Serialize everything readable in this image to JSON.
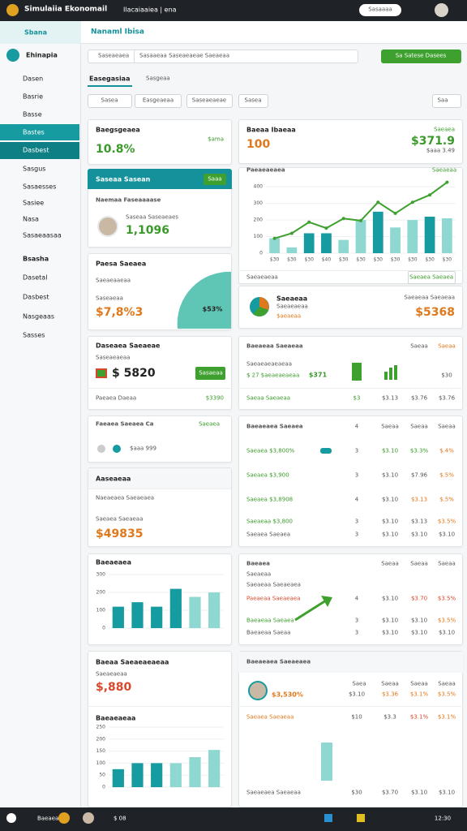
{
  "topbar": {
    "title": "Simulaiia Ekonomail",
    "subtitle": "Ilacaiaaiea | ena",
    "button": "Sasaaaa"
  },
  "sidebar": {
    "header": "Sbana",
    "profile": "Ehinapia",
    "items": [
      "Dasen",
      "Basrie",
      "Basse",
      "Bastes",
      "Dasbest",
      "Sasgus",
      "Sasaesses",
      "Sasiee",
      "Nasa",
      "Sasaeaasaa"
    ],
    "section": "Bsasha",
    "section_items": [
      "Dasetal",
      "Dasbest",
      "Nasgeaas",
      "Sasses"
    ]
  },
  "header": {
    "title": "Nanaml Ibisa"
  },
  "search": {
    "placeholder": "Saseaeaea",
    "field": "Sasaaeaa Saseaeaeae Saeaeaa",
    "button": "Sa Satese Dasees"
  },
  "tabs": [
    "Easegasiaa",
    "Sasgeaa"
  ],
  "filters": [
    "Sasea",
    "Easgeaeaa",
    "Saseaeaeae",
    "Sasea"
  ],
  "filter_select": "Saa",
  "balance": {
    "title": "Baegsgeaea",
    "value": "10.8%",
    "note": "$ama"
  },
  "profile_card": {
    "header": "Saseaa Sasean",
    "button": "Saaa",
    "subtitle": "Naemaa Faseaaaase",
    "name": "Saseaa Saseaeaes",
    "value": "1,1096"
  },
  "gauge_card": {
    "title": "Paesa Saeaea",
    "line1": "Saeaeaaeaa",
    "line2": "Saseaeaa",
    "value": "$7,8%3",
    "gauge": "$53%"
  },
  "deposit": {
    "title": "Daseaea Saeaeae",
    "subtitle": "Saseaeaeaa",
    "value": "$ 5820",
    "button": "Sasaeaa",
    "footer": "Paeaea Daeaa",
    "footer_value": "$3390"
  },
  "friends": {
    "title": "Faeaea Saeaea Ca",
    "link": "Saeaea",
    "meta": "$aaa 999"
  },
  "accounts": {
    "title": "Aaseaeaa",
    "subtitle": "Naeaeaea Saeaeaea",
    "label": "Saeaea Saeaeaa",
    "value": "$49835"
  },
  "bars1": {
    "title": "Baeaeaea",
    "chart": {
      "ylim": [
        0,
        300
      ],
      "yticks": [
        0,
        100,
        200,
        300
      ],
      "values": [
        120,
        145,
        120,
        220,
        175,
        200
      ],
      "bar_colors": [
        "#169ba0",
        "#169ba0",
        "#169ba0",
        "#169ba0",
        "#8fd8d2",
        "#8fd8d2"
      ],
      "grid": true
    }
  },
  "budget": {
    "title": "Baeaa Saeaeaeaeaa",
    "subtitle": "Saeaeaeaa",
    "value": "$,880",
    "chart_title": "Baeaeaeaa",
    "chart": {
      "ylim": [
        0,
        250
      ],
      "yticks": [
        0,
        50,
        100,
        150,
        200,
        250
      ],
      "values": [
        75,
        100,
        100,
        100,
        125,
        155
      ],
      "bar_colors": [
        "#169ba0",
        "#169ba0",
        "#169ba0",
        "#8fd8d2",
        "#8fd8d2",
        "#8fd8d2"
      ],
      "grid": true
    }
  },
  "stock": {
    "title": "Baeaa Ibaeaa",
    "value": "100",
    "label": "Saeaea",
    "value2": "$371.9",
    "note": "$aaa 3.49"
  },
  "performance": {
    "title": "Paeaeaeaea",
    "badge": "Saeaeaa",
    "chart": {
      "ylim": [
        0,
        440
      ],
      "yticks": [
        0,
        100,
        200,
        300,
        400
      ],
      "categories": [
        "$30",
        "$30",
        "$30",
        "$40",
        "$30",
        "$30",
        "$30",
        "$30",
        "$30",
        "$30",
        "$30"
      ],
      "values": [
        90,
        35,
        120,
        120,
        80,
        200,
        250,
        155,
        200,
        220,
        210
      ],
      "bar_colors": [
        "#8fd8d2",
        "#8fd8d2",
        "#169ba0",
        "#169ba0",
        "#8fd8d2",
        "#8fd8d2",
        "#169ba0",
        "#8fd8d2",
        "#8fd8d2",
        "#169ba0",
        "#8fd8d2"
      ],
      "line": [
        89,
        120,
        187,
        151,
        209,
        196,
        307,
        240,
        307,
        351,
        427
      ],
      "line_color": "#3ea02e",
      "grid": true
    },
    "footer": "Saeaeaeaa",
    "button": "Saeaea Saeaea"
  },
  "pie_card": {
    "title": "Saeaeaa",
    "line1": "Saeaeaeaa",
    "line2": "$aeaeaa",
    "right": "Saeaeaa Saeaeaa",
    "value": "$5368"
  },
  "summary": {
    "title": "Baeaeaa Saeaeaa",
    "columns": [
      "Saeaa",
      "Saeaa"
    ],
    "note": "Saeaeaeaeaeaa",
    "row_label": "$ 27 $aeaeaeaeaa",
    "row_value": "$371",
    "row_end": "$30",
    "footer": [
      "Saeaa Saeaeaa",
      "$3",
      "$3.13",
      "$3.76",
      "$3.76"
    ]
  },
  "table1": {
    "title": "Baeaeaea Saeaea",
    "columns": [
      "4",
      "Saeaa",
      "Saeaa",
      "Saeaa"
    ],
    "rows": [
      [
        "Saeaea $3,800%",
        "3",
        "$3.10",
        "$3.3%",
        "$.4%"
      ],
      [
        "Saeaea $3,900",
        "3",
        "$3.10",
        "$7.96",
        "$.5%"
      ],
      [
        "Saeaea $3,8908",
        "4",
        "$3.10",
        "$3.13",
        "$.5%"
      ],
      [
        "Saeaeaa $3,800",
        "3",
        "$3.10",
        "$3.13",
        "$3.5%"
      ],
      [
        "Saeaea Saeaea",
        "3",
        "$3.10",
        "$3.10",
        "$3.10"
      ]
    ]
  },
  "table2": {
    "title": "Baeaea",
    "subtitle": "Saeaeaa",
    "label": "Saeaeaa Saeaeaea",
    "columns": [
      "Saeaa",
      "Saeaa",
      "Saeaa"
    ],
    "rows": [
      [
        "Paeaeaa Saeaeaea",
        "4",
        "$3.10",
        "$3.70",
        "$3.5%"
      ],
      [
        "Baeaeaa Saeaea",
        "3",
        "$3.10",
        "$3.10",
        "$3.5%"
      ],
      [
        "Baeaeaa Saeaa",
        "3",
        "$3.10",
        "$3.10",
        "$3.10"
      ]
    ]
  },
  "table3": {
    "title": "Baeaeaea Saeaeaea",
    "columns": [
      "Saea",
      "Saeaa",
      "Saeaa",
      "Saeaa"
    ],
    "rows": [
      [
        "$3,530%",
        "$3.10",
        "$3.36",
        "$3.1%",
        "$3.5%"
      ],
      [
        "Saeaea Saeaeaa",
        "$10",
        "$3.3",
        "$3.1%",
        "$3.1%"
      ],
      [
        "Saeaeaea Saeaeaa",
        "$30",
        "$3.70",
        "$3.10",
        "$3.10"
      ]
    ]
  },
  "taskbar": {
    "search": "Baeaea",
    "app": "$ 08",
    "time": "12:30"
  }
}
